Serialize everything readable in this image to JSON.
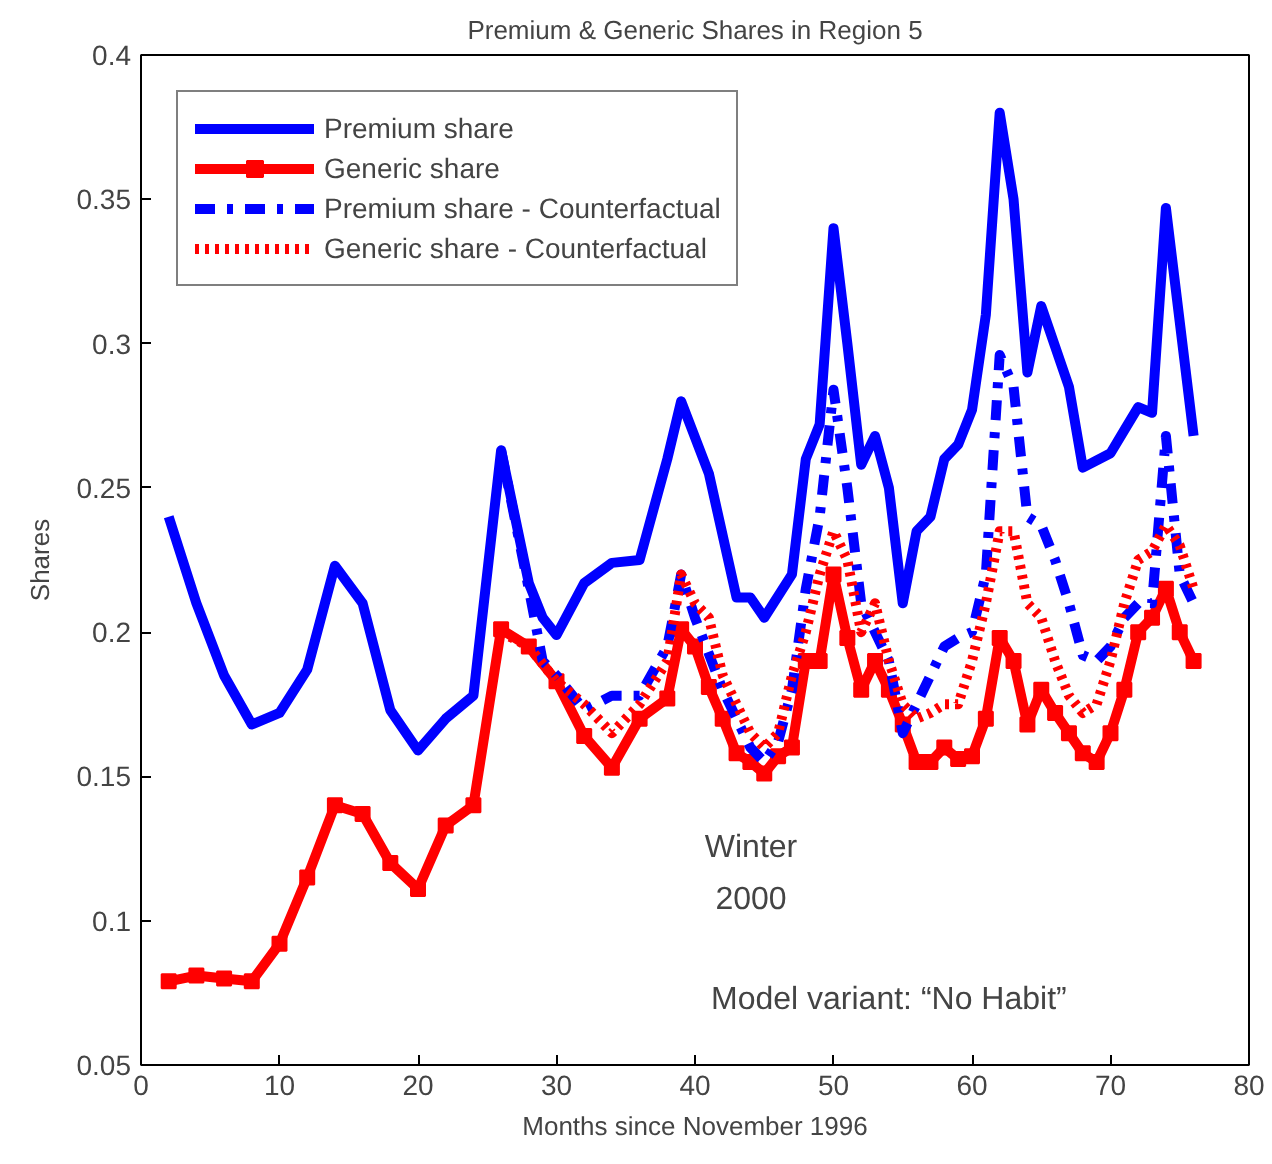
{
  "chart_data": {
    "type": "line",
    "title": "Premium & Generic Shares in Region 5",
    "xlabel": "Months since November 1996",
    "ylabel": "Shares",
    "xlim": [
      0,
      80
    ],
    "xticks": [
      0,
      10,
      20,
      30,
      40,
      50,
      60,
      70,
      80
    ],
    "ylim": [
      0.05,
      0.4
    ],
    "yticks": [
      0.05,
      0.1,
      0.15,
      0.2,
      0.25,
      0.3,
      0.35,
      0.4
    ],
    "grid": false,
    "legend": "top left",
    "series": [
      {
        "name": "Premium share",
        "color": "#0000ff",
        "line_style": "solid",
        "marker": "none",
        "x": [
          2,
          4,
          6,
          8,
          10,
          12,
          14,
          16,
          18,
          20,
          22,
          24,
          26,
          28,
          29,
          30,
          32,
          34,
          36,
          38,
          39,
          41,
          43,
          44,
          45,
          47,
          48,
          49,
          50,
          51,
          52,
          53,
          54,
          55,
          56,
          57,
          58,
          59,
          60,
          61,
          62,
          63,
          64,
          65,
          67,
          68,
          70,
          71,
          72,
          73,
          74,
          76
        ],
        "values": [
          0.24,
          0.21,
          0.185,
          0.168,
          0.172,
          0.187,
          0.223,
          0.21,
          0.173,
          0.159,
          0.17,
          0.178,
          0.263,
          0.217,
          0.205,
          0.199,
          0.217,
          0.224,
          0.225,
          0.26,
          0.28,
          0.255,
          0.212,
          0.212,
          0.205,
          0.22,
          0.26,
          0.272,
          0.34,
          0.3,
          0.258,
          0.268,
          0.25,
          0.21,
          0.235,
          0.24,
          0.26,
          0.265,
          0.277,
          0.31,
          0.38,
          0.35,
          0.29,
          0.313,
          0.285,
          0.257,
          0.262,
          0.27,
          0.278,
          0.276,
          0.347,
          0.268
        ]
      },
      {
        "name": "Generic share",
        "color": "#ff0000",
        "line_style": "solid",
        "marker": "square",
        "x": [
          2,
          4,
          6,
          8,
          10,
          12,
          14,
          16,
          18,
          20,
          22,
          24,
          26,
          28,
          30,
          32,
          34,
          36,
          38,
          39,
          40,
          41,
          42,
          43,
          44,
          45,
          46,
          47,
          48,
          49,
          50,
          51,
          52,
          53,
          54,
          55,
          56,
          57,
          58,
          59,
          60,
          61,
          62,
          63,
          64,
          65,
          66,
          67,
          68,
          69,
          70,
          71,
          72,
          73,
          74,
          75,
          76
        ],
        "values": [
          0.079,
          0.081,
          0.08,
          0.079,
          0.092,
          0.115,
          0.14,
          0.137,
          0.12,
          0.111,
          0.133,
          0.14,
          0.201,
          0.195,
          0.183,
          0.164,
          0.153,
          0.17,
          0.177,
          0.201,
          0.195,
          0.181,
          0.17,
          0.158,
          0.155,
          0.151,
          0.157,
          0.16,
          0.19,
          0.19,
          0.22,
          0.198,
          0.18,
          0.19,
          0.18,
          0.168,
          0.155,
          0.155,
          0.16,
          0.156,
          0.157,
          0.17,
          0.198,
          0.19,
          0.168,
          0.18,
          0.172,
          0.165,
          0.158,
          0.155,
          0.165,
          0.18,
          0.2,
          0.205,
          0.215,
          0.2,
          0.19
        ]
      },
      {
        "name": "Premium share - Counterfactual",
        "color": "#0000ff",
        "line_style": "dashdot",
        "marker": "none",
        "x": [
          26,
          28,
          29,
          30,
          32,
          34,
          36,
          38,
          39,
          40,
          42,
          44,
          45,
          46,
          47,
          48,
          49,
          50,
          51,
          52,
          53,
          54,
          55,
          56,
          57,
          58,
          59,
          60,
          61,
          62,
          63,
          64,
          65,
          66,
          67,
          68,
          69,
          70,
          71,
          72,
          73,
          74,
          75,
          76
        ],
        "values": [
          0.263,
          0.215,
          0.19,
          0.185,
          0.173,
          0.178,
          0.178,
          0.195,
          0.22,
          0.205,
          0.18,
          0.16,
          0.155,
          0.162,
          0.18,
          0.215,
          0.24,
          0.284,
          0.25,
          0.21,
          0.2,
          0.19,
          0.165,
          0.175,
          0.185,
          0.195,
          0.198,
          0.2,
          0.22,
          0.296,
          0.285,
          0.24,
          0.237,
          0.225,
          0.21,
          0.192,
          0.19,
          0.195,
          0.205,
          0.21,
          0.21,
          0.268,
          0.22,
          0.21
        ]
      },
      {
        "name": "Generic share - Counterfactual",
        "color": "#ff0000",
        "line_style": "dotted",
        "marker": "none",
        "x": [
          26,
          28,
          30,
          32,
          34,
          36,
          38,
          39,
          40,
          41,
          42,
          44,
          45,
          46,
          47,
          48,
          49,
          50,
          51,
          52,
          53,
          54,
          55,
          56,
          57,
          58,
          59,
          60,
          61,
          62,
          63,
          64,
          65,
          66,
          67,
          68,
          69,
          70,
          71,
          72,
          73,
          74,
          75,
          76
        ],
        "values": [
          0.2,
          0.195,
          0.183,
          0.175,
          0.165,
          0.175,
          0.19,
          0.22,
          0.21,
          0.205,
          0.185,
          0.165,
          0.16,
          0.165,
          0.185,
          0.2,
          0.22,
          0.235,
          0.225,
          0.2,
          0.21,
          0.19,
          0.175,
          0.17,
          0.172,
          0.175,
          0.175,
          0.19,
          0.21,
          0.235,
          0.235,
          0.21,
          0.205,
          0.19,
          0.178,
          0.172,
          0.175,
          0.19,
          0.21,
          0.225,
          0.228,
          0.237,
          0.23,
          0.215
        ]
      }
    ],
    "annotations": [
      "Winter\n2000",
      "Model variant: “No Habit”"
    ]
  }
}
